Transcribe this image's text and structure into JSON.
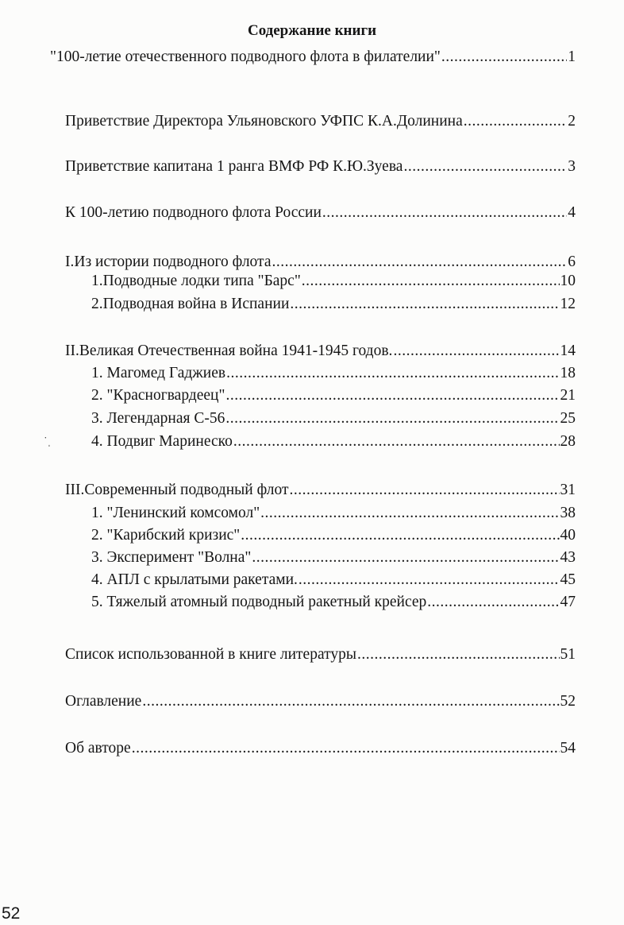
{
  "title": "Содержание книги",
  "entries": [
    {
      "label": "\"100-летие отечественного подводного флота в филателии\"",
      "page": "1"
    },
    {
      "label": "Приветствие  Директора Ульяновского УФПС К.А.Долинина",
      "page": "2"
    },
    {
      "label": "Приветствие капитана 1 ранга ВМФ РФ К.Ю.Зуева",
      "page": "3"
    },
    {
      "label": "К 100-летию подводного флота России",
      "page": "4"
    },
    {
      "label": "I.Из истории подводного флота",
      "page": "6"
    },
    {
      "label": "1.Подводные  лодки типа \"Барс\"",
      "page": "10"
    },
    {
      "label": "2.Подводная война в Испании",
      "page": "12"
    },
    {
      "label": "II.Великая Отечественная война 1941-1945 годов. ",
      "page": "14"
    },
    {
      "label": "1. Магомед Гаджиев",
      "page": "18"
    },
    {
      "label": "2. \"Красногвардеец\"",
      "page": "21"
    },
    {
      "label": "3. Легендарная С-56",
      "page": "25"
    },
    {
      "label": "4. Подвиг Маринеско",
      "page": "28"
    },
    {
      "label": "III.Современный подводный флот ",
      "page": "31"
    },
    {
      "label": "1. \"Ленинский комсомол\"",
      "page": "38"
    },
    {
      "label": "2. \"Карибский кризис\"",
      "page": "40"
    },
    {
      "label": "3. Эксперимент \"Волна\"",
      "page": "43"
    },
    {
      "label": "4. АПЛ с крылатыми ракетами.",
      "page": "45"
    },
    {
      "label": "5. Тяжелый атомный подводный ракетный крейсер ",
      "page": "47"
    },
    {
      "label": "Список использованной в книге литературы ",
      "page": "51"
    },
    {
      "label": "Оглавление ",
      "page": "52"
    },
    {
      "label": "Об авторе ",
      "page": "54"
    }
  ],
  "page_number": "52"
}
